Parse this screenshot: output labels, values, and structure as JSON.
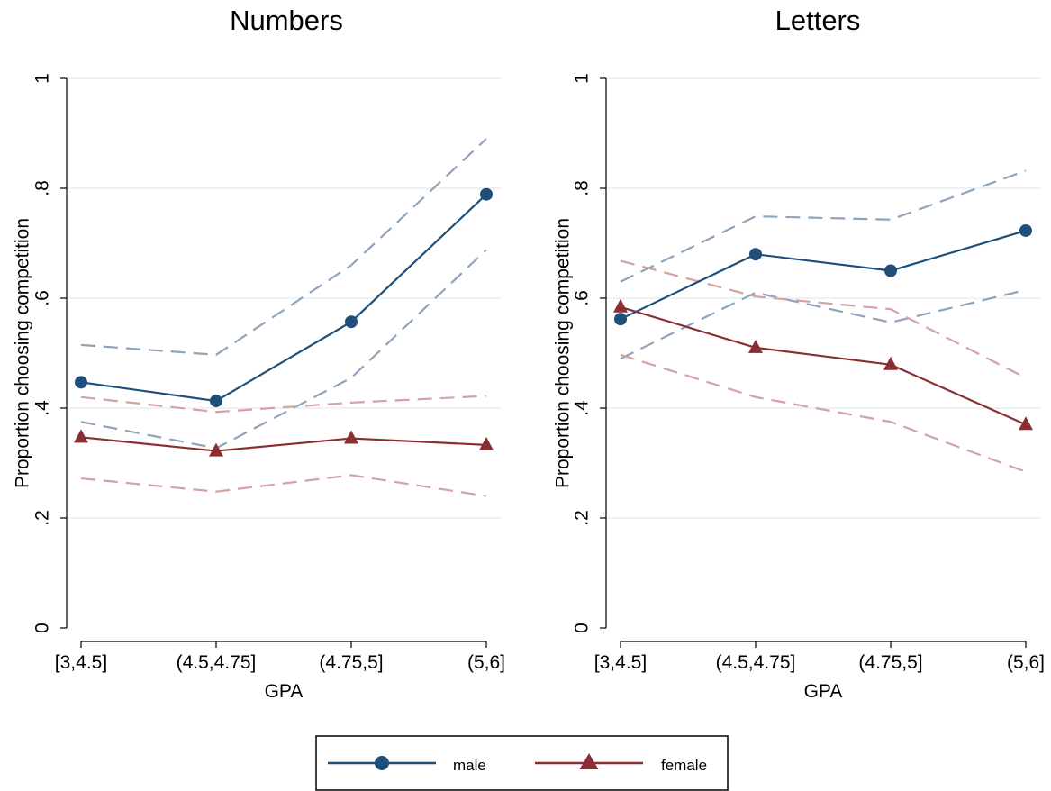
{
  "chart_data": [
    {
      "type": "line",
      "title": "Numbers",
      "xlabel": "GPA",
      "ylabel": "Proportion choosing competition",
      "categories": [
        "[3,4.5]",
        "(4.5,4.75]",
        "(4.75,5]",
        "(5,6]"
      ],
      "ylim": [
        0,
        1
      ],
      "yticks": [
        0,
        0.2,
        0.4,
        0.6,
        0.8,
        1
      ],
      "ytick_labels": [
        "0",
        ".2",
        ".4",
        ".6",
        ".8",
        "1"
      ],
      "grid": true,
      "series": [
        {
          "name": "male",
          "values": [
            0.447,
            0.413,
            0.557,
            0.789
          ],
          "ci_upper": [
            0.515,
            0.497,
            0.66,
            0.89
          ],
          "ci_lower": [
            0.375,
            0.327,
            0.455,
            0.688
          ],
          "color": "#1f4e79",
          "marker": "circle"
        },
        {
          "name": "female",
          "values": [
            0.347,
            0.322,
            0.345,
            0.333
          ],
          "ci_upper": [
            0.42,
            0.393,
            0.41,
            0.422
          ],
          "ci_lower": [
            0.272,
            0.248,
            0.278,
            0.24
          ],
          "color": "#8b2e34",
          "marker": "triangle"
        }
      ]
    },
    {
      "type": "line",
      "title": "Letters",
      "xlabel": "GPA",
      "ylabel": "Proportion choosing competition",
      "categories": [
        "[3,4.5]",
        "(4.5,4.75]",
        "(4.75,5]",
        "(5,6]"
      ],
      "ylim": [
        0,
        1
      ],
      "yticks": [
        0,
        0.2,
        0.4,
        0.6,
        0.8,
        1
      ],
      "ytick_labels": [
        "0",
        ".2",
        ".4",
        ".6",
        ".8",
        "1"
      ],
      "grid": true,
      "series": [
        {
          "name": "male",
          "values": [
            0.562,
            0.68,
            0.65,
            0.723
          ],
          "ci_upper": [
            0.63,
            0.749,
            0.743,
            0.832
          ],
          "ci_lower": [
            0.49,
            0.61,
            0.556,
            0.615
          ],
          "color": "#1f4e79",
          "marker": "circle"
        },
        {
          "name": "female",
          "values": [
            0.584,
            0.51,
            0.479,
            0.37
          ],
          "ci_upper": [
            0.668,
            0.603,
            0.58,
            0.455
          ],
          "ci_lower": [
            0.497,
            0.42,
            0.375,
            0.284
          ],
          "color": "#8b2e34",
          "marker": "triangle"
        }
      ]
    }
  ],
  "legend": {
    "position": "bottom-center",
    "items": [
      {
        "label": "male",
        "color": "#1f4e79",
        "marker": "circle"
      },
      {
        "label": "female",
        "color": "#8b2e34",
        "marker": "triangle"
      }
    ]
  },
  "colors": {
    "male": "#1f4e79",
    "female": "#8b2e34",
    "male_ci": "#8ea4bd",
    "female_ci": "#d3a3a4",
    "grid": "#e3eaef"
  }
}
